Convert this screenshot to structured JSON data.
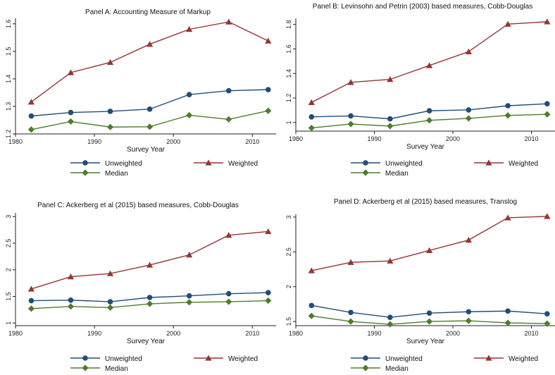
{
  "colors": {
    "unweighted": "#1f4e79",
    "weighted": "#943634",
    "median": "#4f7d2a",
    "axis": "#222222"
  },
  "chart_data": [
    {
      "type": "line",
      "title": "Panel A: Accounting Measure of Markup",
      "xlabel": "Survey Year",
      "ylabel": "",
      "xlim": [
        1980,
        2013
      ],
      "ylim": [
        1.2,
        1.62
      ],
      "xticks": [
        "1980",
        "1990",
        "2000",
        "2010"
      ],
      "yticks": [
        "1.2",
        "1.3",
        "1.4",
        "1.5",
        "1.6"
      ],
      "x": [
        1982,
        1987,
        1992,
        1997,
        2002,
        2007,
        2012
      ],
      "series": [
        {
          "name": "Unweighted",
          "marker": "circle",
          "values": [
            1.265,
            1.278,
            1.282,
            1.29,
            1.343,
            1.357,
            1.361
          ]
        },
        {
          "name": "Weighted",
          "marker": "triangle",
          "values": [
            1.316,
            1.423,
            1.46,
            1.526,
            1.58,
            1.607,
            1.538
          ]
        },
        {
          "name": "Median",
          "marker": "diamond",
          "values": [
            1.216,
            1.245,
            1.225,
            1.226,
            1.268,
            1.253,
            1.284
          ]
        }
      ],
      "legend": "bottom"
    },
    {
      "type": "line",
      "title": "Panel B: Levinsohn and Petrin (2003) based measures, Cobb-Douglas",
      "xlabel": "Survey Year",
      "ylabel": "",
      "xlim": [
        1980,
        2013
      ],
      "ylim": [
        0.93,
        1.85
      ],
      "xticks": [
        "1980",
        "1990",
        "2000",
        "2010"
      ],
      "yticks": [
        "1",
        "1.2",
        "1.4",
        "1.6",
        "1.8"
      ],
      "x": [
        1982,
        1987,
        1992,
        1997,
        2002,
        2007,
        2012
      ],
      "series": [
        {
          "name": "Unweighted",
          "marker": "circle",
          "values": [
            1.046,
            1.054,
            1.03,
            1.096,
            1.103,
            1.137,
            1.153
          ]
        },
        {
          "name": "Weighted",
          "marker": "triangle",
          "values": [
            1.164,
            1.328,
            1.352,
            1.465,
            1.578,
            1.803,
            1.822
          ]
        },
        {
          "name": "Median",
          "marker": "diamond",
          "values": [
            0.956,
            0.988,
            0.971,
            1.018,
            1.034,
            1.058,
            1.067
          ]
        }
      ],
      "legend": "bottom"
    },
    {
      "type": "line",
      "title": "Panel C: Ackerberg et al (2015) based measures, Cobb-Douglas",
      "xlabel": "Survey Year",
      "ylabel": "",
      "xlim": [
        1980,
        2013
      ],
      "ylim": [
        0.95,
        3.07
      ],
      "xticks": [
        "1980",
        "1990",
        "2000",
        "2010"
      ],
      "yticks": [
        "1",
        "1.5",
        "2",
        "2.5",
        "3"
      ],
      "x": [
        1982,
        1987,
        1992,
        1997,
        2002,
        2007,
        2012
      ],
      "series": [
        {
          "name": "Unweighted",
          "marker": "circle",
          "values": [
            1.42,
            1.43,
            1.4,
            1.48,
            1.51,
            1.55,
            1.57
          ]
        },
        {
          "name": "Weighted",
          "marker": "triangle",
          "values": [
            1.64,
            1.87,
            1.93,
            2.09,
            2.28,
            2.65,
            2.72
          ]
        },
        {
          "name": "Median",
          "marker": "diamond",
          "values": [
            1.27,
            1.31,
            1.29,
            1.36,
            1.39,
            1.4,
            1.42
          ]
        }
      ],
      "legend": "bottom"
    },
    {
      "type": "line",
      "title": "Panel D: Ackerberg et al (2015) based measures, Translog",
      "xlabel": "Survey Year",
      "ylabel": "",
      "xlim": [
        1980,
        2013
      ],
      "ylim": [
        1.44,
        3.04
      ],
      "xticks": [
        "1980",
        "1990",
        "2000",
        "2010"
      ],
      "yticks": [
        "1.5",
        "2",
        "2.5",
        "3"
      ],
      "x": [
        1982,
        1987,
        1992,
        1997,
        2002,
        2007,
        2012
      ],
      "series": [
        {
          "name": "Unweighted",
          "marker": "circle",
          "values": [
            1.73,
            1.63,
            1.56,
            1.62,
            1.64,
            1.65,
            1.61
          ]
        },
        {
          "name": "Weighted",
          "marker": "triangle",
          "values": [
            2.23,
            2.35,
            2.37,
            2.52,
            2.67,
            2.99,
            3.01
          ]
        },
        {
          "name": "Median",
          "marker": "diamond",
          "values": [
            1.58,
            1.5,
            1.46,
            1.5,
            1.51,
            1.48,
            1.47
          ]
        }
      ],
      "legend": "bottom"
    }
  ]
}
